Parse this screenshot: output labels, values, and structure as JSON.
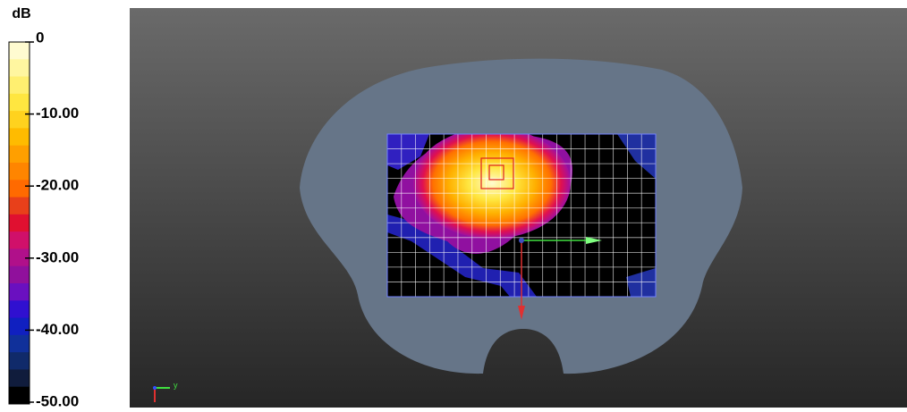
{
  "colorbar": {
    "unit": "dB",
    "ticks": [
      "0",
      "-10.00",
      "-20.00",
      "-30.00",
      "-40.00",
      "-50.00"
    ]
  },
  "axes_indicator": {
    "label": "y"
  }
}
